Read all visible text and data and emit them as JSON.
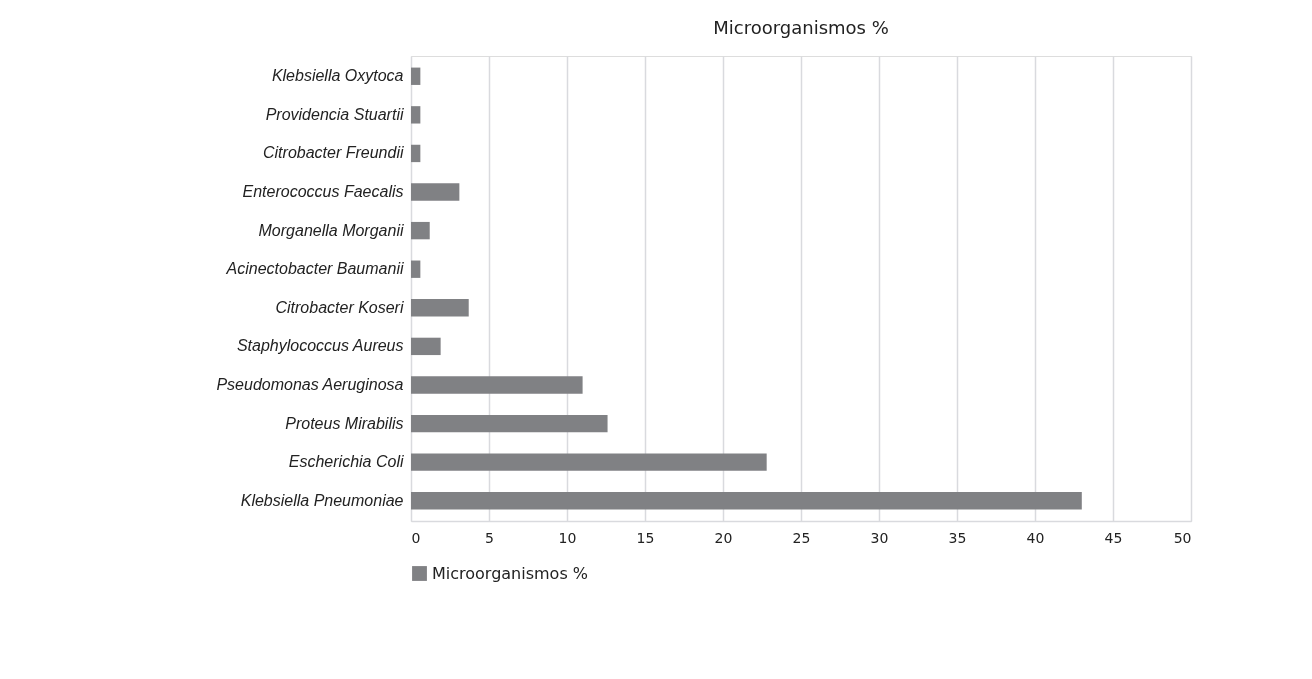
{
  "chart_data": {
    "type": "bar",
    "orientation": "horizontal",
    "title": "Microorganismos %",
    "categories": [
      "Klebsiella Oxytoca",
      "Providencia Stuartii",
      "Citrobacter Freundii",
      "Enterococcus Faecalis",
      "Morganella Morganii",
      "Acinectobacter Baumanii",
      "Citrobacter Koseri",
      "Staphylococcus Aureus",
      "Pseudomonas Aeruginosa",
      "Proteus Mirabilis",
      "Escherichia Coli",
      "Klebsiella Pneumoniae"
    ],
    "series": [
      {
        "name": "Microorganismos %",
        "color": "#808184",
        "values": [
          0.6,
          0.6,
          0.6,
          3.1,
          1.2,
          0.6,
          3.7,
          1.9,
          11.0,
          12.6,
          22.8,
          43.0
        ]
      }
    ],
    "xlim": [
      0,
      50
    ],
    "xticks": [
      0,
      5,
      10,
      15,
      20,
      25,
      30,
      35,
      40,
      45,
      50
    ],
    "grid": "x",
    "legend": "bottom"
  }
}
